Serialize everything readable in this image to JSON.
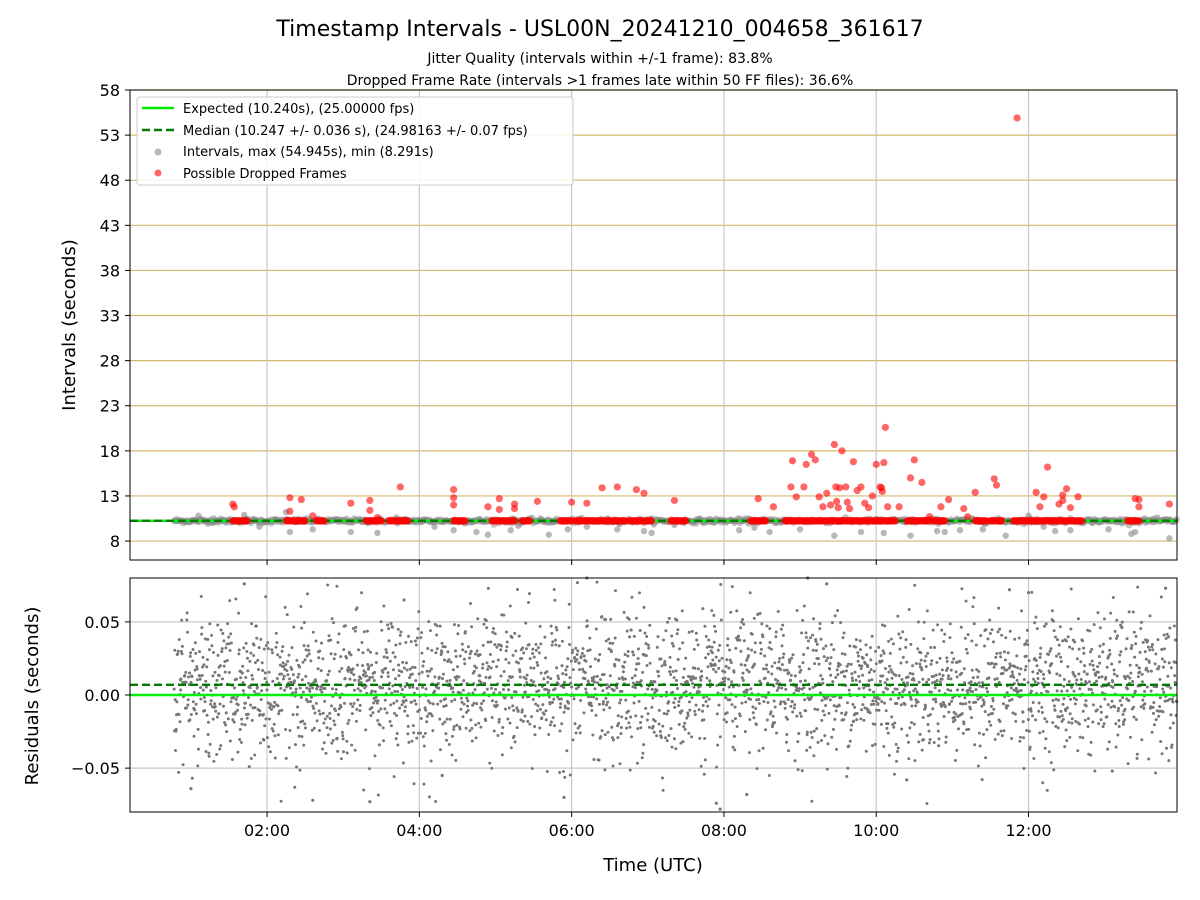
{
  "chart_data": [
    {
      "type": "scatter",
      "title": "Timestamp Intervals - USL00N_20241210_004658_361617",
      "subtitle_lines": [
        "Jitter Quality (intervals within +/-1 frame): 83.8%",
        "Dropped Frame Rate (intervals >1 frames late within 50 FF files): 36.6%"
      ],
      "xlabel": "",
      "ylabel": "Intervals (seconds)",
      "x_unit": "hours UTC",
      "xlim": [
        0.2,
        13.95
      ],
      "ylim": [
        5.9,
        58
      ],
      "yticks": [
        8,
        13,
        18,
        23,
        28,
        33,
        38,
        43,
        48,
        53,
        58
      ],
      "xticks": [
        2,
        4,
        6,
        8,
        10,
        12
      ],
      "xtick_labels": [
        "02:00",
        "04:00",
        "06:00",
        "08:00",
        "10:00",
        "12:00"
      ],
      "grid": "on",
      "legend_placement": "top-left",
      "lines": [
        {
          "label": "Expected (10.240s), (25.00000 fps)",
          "y": 10.24,
          "style": "solid",
          "color": "#00ee00"
        },
        {
          "label": "Median (10.247 +/- 0.036 s), (24.98163 +/- 0.07 fps)",
          "y": 10.247,
          "style": "dashed",
          "color": "#007a00"
        }
      ],
      "series": [
        {
          "label": "Intervals, max (54.945s), min (8.291s)",
          "color": "#888888",
          "baseline": 10.24,
          "x_range": [
            0.78,
            13.95
          ],
          "outliers": [
            [
              1.1,
              10.8
            ],
            [
              1.3,
              10.5
            ],
            [
              1.7,
              10.9
            ],
            [
              1.9,
              9.6
            ],
            [
              2.25,
              11.2
            ],
            [
              2.3,
              9.0
            ],
            [
              2.6,
              9.3
            ],
            [
              3.1,
              9.0
            ],
            [
              3.45,
              8.9
            ],
            [
              3.7,
              10.6
            ],
            [
              4.2,
              9.6
            ],
            [
              4.45,
              9.2
            ],
            [
              4.75,
              9.0
            ],
            [
              4.9,
              8.7
            ],
            [
              5.2,
              9.2
            ],
            [
              5.3,
              9.7
            ],
            [
              5.7,
              8.7
            ],
            [
              5.95,
              9.3
            ],
            [
              6.2,
              9.6
            ],
            [
              6.6,
              9.3
            ],
            [
              6.95,
              9.1
            ],
            [
              7.05,
              8.9
            ],
            [
              7.35,
              9.8
            ],
            [
              8.2,
              9.2
            ],
            [
              8.4,
              9.5
            ],
            [
              8.6,
              9.0
            ],
            [
              9.0,
              9.3
            ],
            [
              9.45,
              8.6
            ],
            [
              9.8,
              9.0
            ],
            [
              10.1,
              8.9
            ],
            [
              10.45,
              8.6
            ],
            [
              10.8,
              9.1
            ],
            [
              11.1,
              9.2
            ],
            [
              11.4,
              9.3
            ],
            [
              11.7,
              8.6
            ],
            [
              12.0,
              10.8
            ],
            [
              12.35,
              9.1
            ],
            [
              12.55,
              9.2
            ],
            [
              13.05,
              9.3
            ],
            [
              13.35,
              8.8
            ],
            [
              13.4,
              9.0
            ],
            [
              13.85,
              8.3
            ],
            [
              12.2,
              9.6
            ],
            [
              10.9,
              9.0
            ]
          ]
        },
        {
          "label": "Possible Dropped Frames",
          "color": "#ff0000",
          "baseline": 10.24,
          "band_ranges": [
            [
              1.55,
              1.75
            ],
            [
              2.25,
              2.5
            ],
            [
              2.65,
              2.75
            ],
            [
              3.3,
              3.5
            ],
            [
              3.6,
              3.85
            ],
            [
              4.45,
              4.6
            ],
            [
              4.95,
              5.25
            ],
            [
              5.35,
              5.45
            ],
            [
              5.85,
              6.0
            ],
            [
              6.05,
              6.7
            ],
            [
              6.75,
              7.05
            ],
            [
              7.3,
              7.5
            ],
            [
              8.35,
              8.55
            ],
            [
              8.8,
              10.25
            ],
            [
              10.4,
              10.7
            ],
            [
              10.75,
              10.9
            ],
            [
              11.3,
              11.45
            ],
            [
              11.5,
              11.65
            ],
            [
              11.8,
              12.7
            ],
            [
              13.3,
              13.45
            ]
          ],
          "points": [
            [
              1.55,
              12.1
            ],
            [
              1.57,
              11.8
            ],
            [
              2.3,
              12.8
            ],
            [
              2.3,
              11.3
            ],
            [
              2.45,
              12.6
            ],
            [
              2.6,
              10.8
            ],
            [
              3.1,
              12.2
            ],
            [
              3.35,
              11.4
            ],
            [
              3.35,
              12.5
            ],
            [
              3.45,
              10.6
            ],
            [
              3.75,
              14.0
            ],
            [
              4.45,
              13.7
            ],
            [
              4.45,
              12.8
            ],
            [
              4.45,
              12.0
            ],
            [
              4.9,
              11.8
            ],
            [
              5.05,
              12.7
            ],
            [
              5.05,
              11.5
            ],
            [
              5.25,
              12.1
            ],
            [
              5.25,
              11.6
            ],
            [
              5.55,
              12.4
            ],
            [
              6.0,
              12.3
            ],
            [
              6.2,
              12.2
            ],
            [
              6.4,
              13.9
            ],
            [
              6.6,
              14.0
            ],
            [
              6.85,
              13.7
            ],
            [
              6.95,
              13.3
            ],
            [
              7.35,
              12.5
            ],
            [
              8.45,
              12.7
            ],
            [
              8.65,
              11.8
            ],
            [
              8.88,
              14.0
            ],
            [
              8.9,
              16.9
            ],
            [
              8.95,
              12.9
            ],
            [
              9.05,
              14.0
            ],
            [
              9.08,
              16.5
            ],
            [
              9.15,
              17.6
            ],
            [
              9.2,
              17.0
            ],
            [
              9.25,
              12.9
            ],
            [
              9.3,
              11.8
            ],
            [
              9.35,
              13.3
            ],
            [
              9.4,
              12.0
            ],
            [
              9.45,
              18.7
            ],
            [
              9.47,
              14.0
            ],
            [
              9.48,
              12.4
            ],
            [
              9.5,
              11.7
            ],
            [
              9.52,
              13.9
            ],
            [
              9.55,
              18.0
            ],
            [
              9.6,
              14.0
            ],
            [
              9.62,
              12.3
            ],
            [
              9.65,
              11.6
            ],
            [
              9.7,
              16.8
            ],
            [
              9.75,
              13.6
            ],
            [
              9.8,
              14.0
            ],
            [
              9.85,
              12.2
            ],
            [
              9.9,
              11.7
            ],
            [
              9.95,
              13.0
            ],
            [
              10.0,
              16.5
            ],
            [
              10.05,
              14.0
            ],
            [
              10.07,
              13.9
            ],
            [
              10.08,
              13.5
            ],
            [
              10.1,
              16.7
            ],
            [
              10.12,
              20.6
            ],
            [
              10.15,
              11.8
            ],
            [
              10.3,
              11.8
            ],
            [
              10.45,
              15.0
            ],
            [
              10.5,
              17.0
            ],
            [
              10.6,
              14.5
            ],
            [
              10.7,
              10.7
            ],
            [
              10.85,
              11.8
            ],
            [
              10.95,
              12.6
            ],
            [
              11.15,
              11.6
            ],
            [
              11.2,
              10.7
            ],
            [
              11.3,
              13.4
            ],
            [
              11.55,
              14.9
            ],
            [
              11.58,
              14.2
            ],
            [
              11.85,
              54.9
            ],
            [
              12.1,
              13.4
            ],
            [
              12.15,
              11.8
            ],
            [
              12.2,
              12.9
            ],
            [
              12.25,
              16.2
            ],
            [
              12.4,
              12.1
            ],
            [
              12.45,
              12.5
            ],
            [
              12.45,
              13.1
            ],
            [
              12.5,
              13.8
            ],
            [
              12.55,
              11.7
            ],
            [
              12.65,
              12.9
            ],
            [
              13.4,
              12.7
            ],
            [
              13.45,
              12.6
            ],
            [
              13.45,
              11.8
            ],
            [
              13.85,
              12.1
            ]
          ]
        }
      ],
      "legend_entries": [
        "Expected (10.240s), (25.00000 fps)",
        "Median (10.247 +/- 0.036 s), (24.98163 +/- 0.07 fps)",
        "Intervals, max (54.945s), min (8.291s)",
        "Possible Dropped Frames"
      ]
    },
    {
      "type": "scatter",
      "xlabel": "Time (UTC)",
      "ylabel": "Residuals (seconds)",
      "xlim": [
        0.2,
        13.95
      ],
      "ylim": [
        -0.08,
        0.08
      ],
      "yticks": [
        0.05,
        0.0,
        -0.05
      ],
      "ytick_labels": [
        "0.05",
        "0.00",
        "−0.05"
      ],
      "xticks": [
        2,
        4,
        6,
        8,
        10,
        12
      ],
      "xtick_labels": [
        "02:00",
        "04:00",
        "06:00",
        "08:00",
        "10:00",
        "12:00"
      ],
      "grid": "on",
      "lines": [
        {
          "y": 0.0,
          "style": "solid",
          "color": "#00ee00"
        },
        {
          "y": 0.007,
          "style": "dashed",
          "color": "#007a00"
        }
      ],
      "series": [
        {
          "color": "#777777",
          "x_range": [
            0.78,
            13.95
          ],
          "center": 0.007,
          "spread_sd": 0.024,
          "extreme_points": [
            [
              1.0,
              -0.064
            ],
            [
              1.7,
              0.076
            ],
            [
              2.6,
              -0.072
            ],
            [
              3.35,
              -0.073
            ],
            [
              3.8,
              0.065
            ],
            [
              4.3,
              -0.055
            ],
            [
              5.9,
              -0.07
            ],
            [
              6.2,
              0.08
            ],
            [
              7.9,
              -0.074
            ],
            [
              7.95,
              -0.078
            ],
            [
              8.3,
              -0.068
            ],
            [
              9.1,
              0.08
            ],
            [
              9.35,
              0.076
            ],
            [
              10.4,
              -0.058
            ],
            [
              11.75,
              0.072
            ],
            [
              12.0,
              0.07
            ],
            [
              13.1,
              -0.052
            ],
            [
              13.8,
              0.073
            ]
          ]
        }
      ]
    }
  ]
}
